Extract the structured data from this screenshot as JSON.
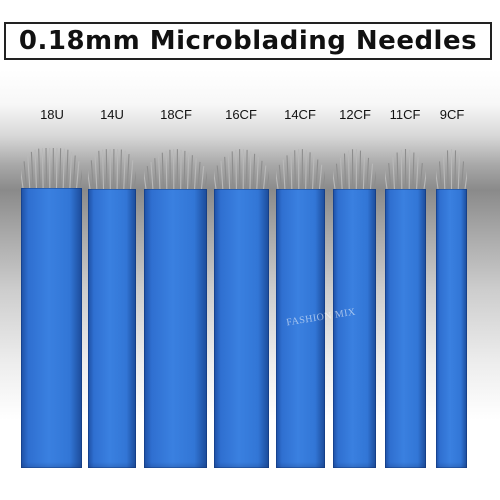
{
  "title": "0.18mm Microblading Needles",
  "watermark": "FASHION MIX",
  "colors": {
    "blade_blue": "#3276d6",
    "needle_steel": "#9a9a9a",
    "title_border": "#222222"
  },
  "needles": [
    {
      "label": "18U",
      "shape": "U",
      "pins": 18
    },
    {
      "label": "14U",
      "shape": "U",
      "pins": 14
    },
    {
      "label": "18CF",
      "shape": "CF",
      "pins": 18
    },
    {
      "label": "16CF",
      "shape": "CF",
      "pins": 16
    },
    {
      "label": "14CF",
      "shape": "CF",
      "pins": 14
    },
    {
      "label": "12CF",
      "shape": "CF",
      "pins": 12
    },
    {
      "label": "11CF",
      "shape": "CF",
      "pins": 11
    },
    {
      "label": "9CF",
      "shape": "CF",
      "pins": 9
    }
  ]
}
